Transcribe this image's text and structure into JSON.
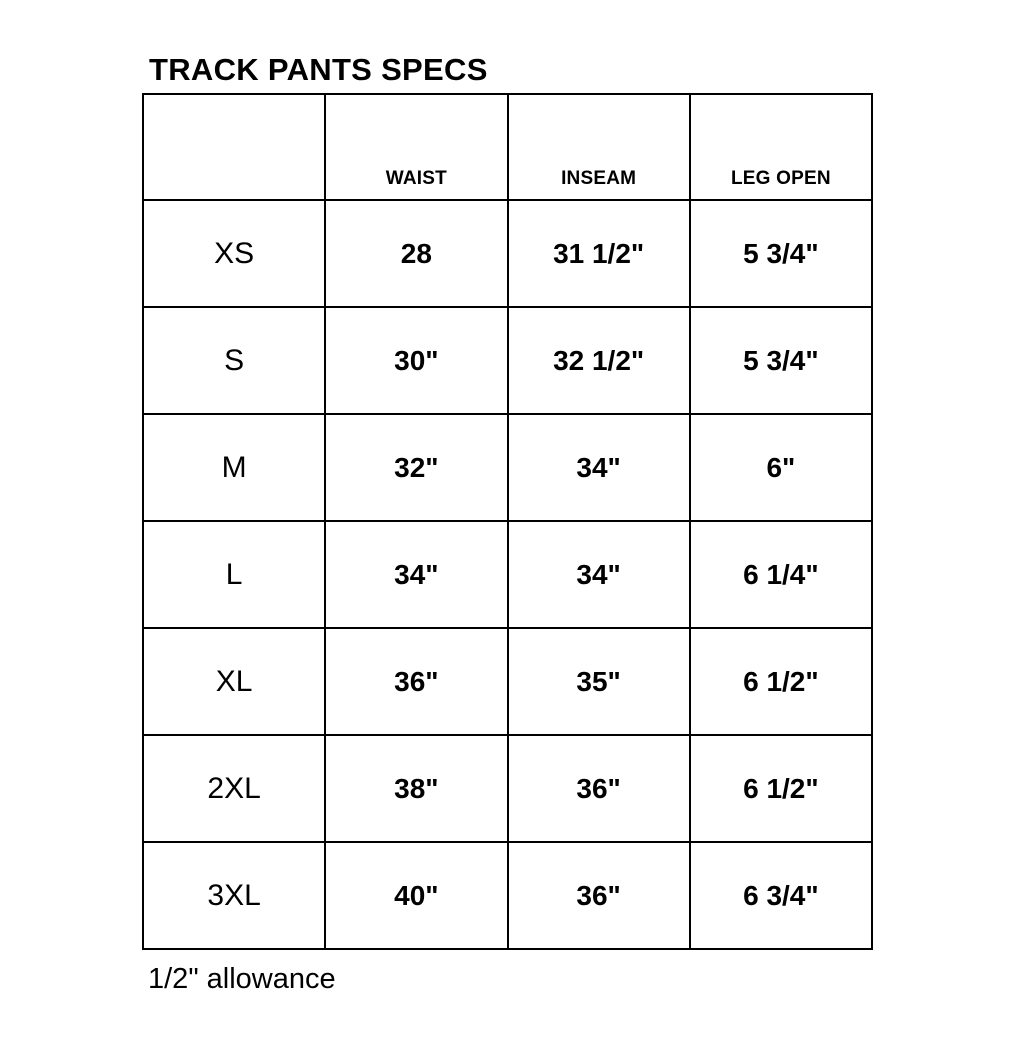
{
  "title": "TRACK PANTS SPECS",
  "table": {
    "columns": [
      "",
      "WAIST",
      "INSEAM",
      "LEG OPEN"
    ],
    "rows": [
      {
        "size": "XS",
        "waist": "28",
        "inseam": "31 1/2\"",
        "leg_open": "5 3/4\""
      },
      {
        "size": "S",
        "waist": "30\"",
        "inseam": "32 1/2\"",
        "leg_open": "5 3/4\""
      },
      {
        "size": "M",
        "waist": "32\"",
        "inseam": "34\"",
        "leg_open": "6\""
      },
      {
        "size": "L",
        "waist": "34\"",
        "inseam": "34\"",
        "leg_open": "6 1/4\""
      },
      {
        "size": "XL",
        "waist": "36\"",
        "inseam": "35\"",
        "leg_open": "6 1/2\""
      },
      {
        "size": "2XL",
        "waist": "38\"",
        "inseam": "36\"",
        "leg_open": "6 1/2\""
      },
      {
        "size": "3XL",
        "waist": "40\"",
        "inseam": "36\"",
        "leg_open": "6 3/4\""
      }
    ]
  },
  "footnote": "1/2\" allowance",
  "colors": {
    "text": "#000000",
    "border": "#000000",
    "background": "#ffffff"
  }
}
